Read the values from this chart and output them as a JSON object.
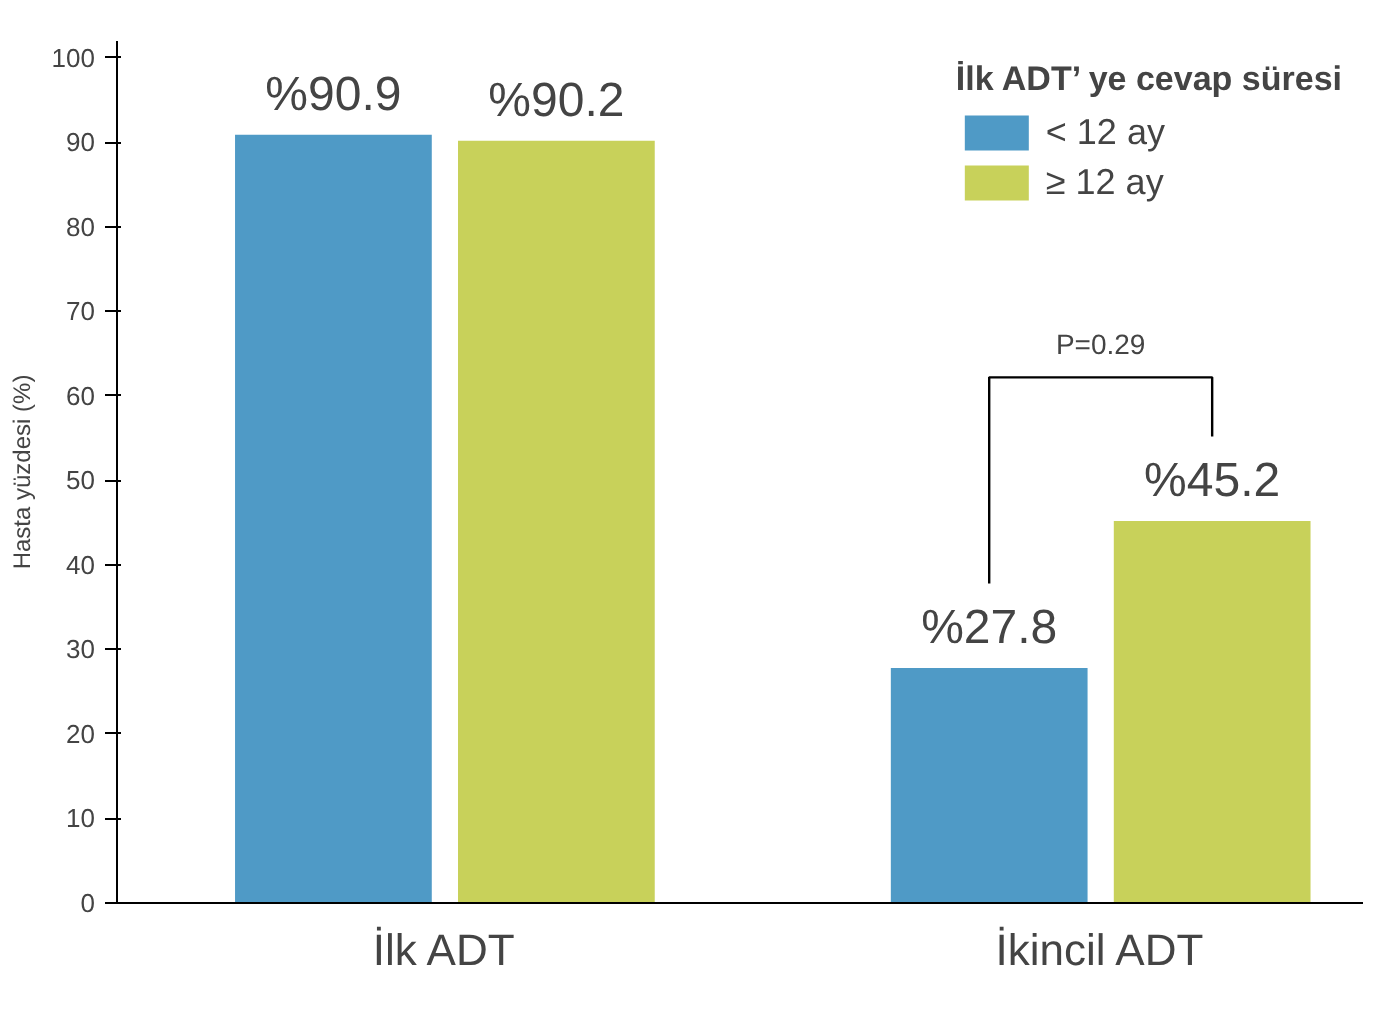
{
  "chart_data": {
    "type": "bar",
    "ylabel": "Hasta yüzdesi (%)",
    "legend_title": "İlk ADT’ ye cevap süresi",
    "categories": [
      "İlk ADT",
      "İkincil ADT"
    ],
    "series": [
      {
        "name": "< 12 ay",
        "color": "#4f9ac6",
        "values": [
          90.9,
          27.8
        ],
        "value_labels": [
          "%90.9",
          "%27.8"
        ]
      },
      {
        "name": "≥ 12 ay",
        "color": "#c8d15a",
        "values": [
          90.2,
          45.2
        ],
        "value_labels": [
          "%90.2",
          "%45.2"
        ]
      }
    ],
    "ylim": [
      0,
      102
    ],
    "yticks": [
      0,
      10,
      20,
      30,
      40,
      50,
      60,
      70,
      80,
      90,
      100
    ],
    "grid": false,
    "legend": "top right",
    "annotations": [
      "P=0.29"
    ]
  }
}
